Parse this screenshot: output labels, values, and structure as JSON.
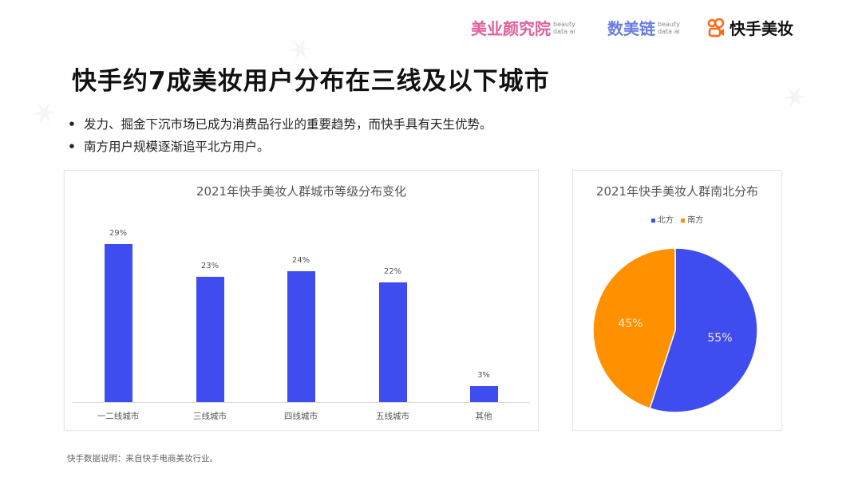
{
  "header": {
    "logos": [
      {
        "text": "美业颜究院",
        "sub": "beauty data ai",
        "color": "#e0609a"
      },
      {
        "text": "数美链",
        "sub": "beauty data ai",
        "color": "#6a7de0"
      },
      {
        "text": "快手美妆",
        "icon": "kuaishou-logo-icon",
        "color": "#ff6a1a"
      }
    ]
  },
  "title": "快手约7成美妆用户分布在三线及以下城市",
  "bullets": [
    "发力、掘金下沉市场已成为消费品行业的重要趋势，而快手具有天生优势。",
    "南方用户规模逐渐追平北方用户。"
  ],
  "bullet_symbol": "•",
  "footnote": "快手数据说明：来自快手电商美妆行业。",
  "colors": {
    "blue": "#3f4cf0",
    "orange": "#ff9000"
  },
  "chart_data": [
    {
      "type": "bar",
      "title": "2021年快手美妆人群城市等级分布变化",
      "categories": [
        "一二线城市",
        "三线城市",
        "四线城市",
        "五线城市",
        "其他"
      ],
      "values": [
        29,
        23,
        24,
        22,
        3
      ],
      "value_labels": [
        "29%",
        "23%",
        "24%",
        "22%",
        "3%"
      ],
      "unit": "%",
      "xlabel": "",
      "ylabel": "",
      "grid": false,
      "color": "#3f4cf0"
    },
    {
      "type": "pie",
      "title": "2021年快手美妆人群南北分布",
      "categories": [
        "北方",
        "南方"
      ],
      "values": [
        55,
        45
      ],
      "value_labels": [
        "55%",
        "45%"
      ],
      "colors": [
        "#3f4cf0",
        "#ff9000"
      ],
      "legend_position": "top"
    }
  ]
}
